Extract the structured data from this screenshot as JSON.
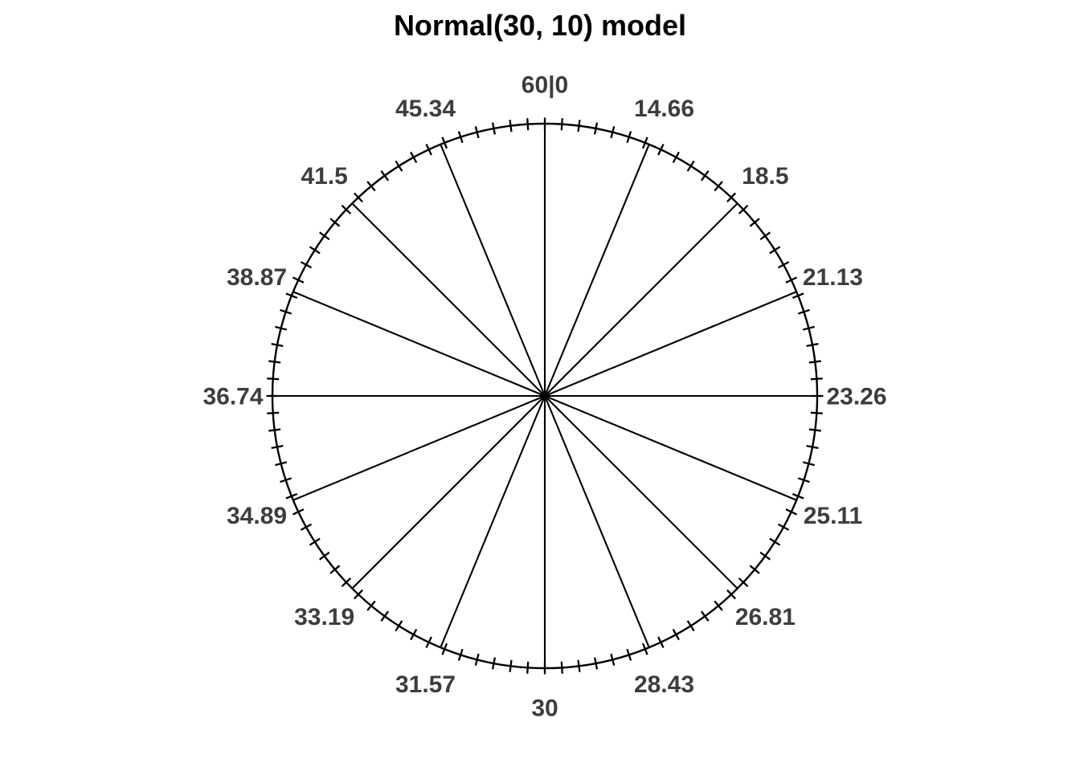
{
  "title": "Normal(30, 10) model",
  "chart_data": {
    "type": "pie",
    "variant": "probability-spinner-wheel",
    "title": "Normal(30, 10) model",
    "distribution": {
      "family": "Normal",
      "mean": 30,
      "sd": 10
    },
    "description": "Spinner wheel: circumference represents probability 0-1 clockwise from top; 16 equally spaced spokes are labeled with Normal(30,10) quantiles at p = k/16; 100 uniform percentile tick marks cross the rim.",
    "sector_count": 16,
    "angle_step_deg": 22.5,
    "minor_tick_count": 100,
    "legend": "none",
    "grid": "off",
    "sectors": [
      {
        "angle_deg": 0.0,
        "probability": 0.0,
        "label": "60|0"
      },
      {
        "angle_deg": 22.5,
        "probability": 0.0625,
        "label": "14.66"
      },
      {
        "angle_deg": 45.0,
        "probability": 0.125,
        "label": "18.5"
      },
      {
        "angle_deg": 67.5,
        "probability": 0.1875,
        "label": "21.13"
      },
      {
        "angle_deg": 90.0,
        "probability": 0.25,
        "label": "23.26"
      },
      {
        "angle_deg": 112.5,
        "probability": 0.3125,
        "label": "25.11"
      },
      {
        "angle_deg": 135.0,
        "probability": 0.375,
        "label": "26.81"
      },
      {
        "angle_deg": 157.5,
        "probability": 0.4375,
        "label": "28.43"
      },
      {
        "angle_deg": 180.0,
        "probability": 0.5,
        "label": "30"
      },
      {
        "angle_deg": 202.5,
        "probability": 0.5625,
        "label": "31.57"
      },
      {
        "angle_deg": 225.0,
        "probability": 0.625,
        "label": "33.19"
      },
      {
        "angle_deg": 247.5,
        "probability": 0.6875,
        "label": "34.89"
      },
      {
        "angle_deg": 270.0,
        "probability": 0.75,
        "label": "36.74"
      },
      {
        "angle_deg": 292.5,
        "probability": 0.8125,
        "label": "38.87"
      },
      {
        "angle_deg": 315.0,
        "probability": 0.875,
        "label": "41.5"
      },
      {
        "angle_deg": 337.5,
        "probability": 0.9375,
        "label": "45.34"
      }
    ],
    "colors": {
      "line": "#000000",
      "label": "#3d3d3d",
      "title": "#000000",
      "background": "#ffffff"
    }
  }
}
